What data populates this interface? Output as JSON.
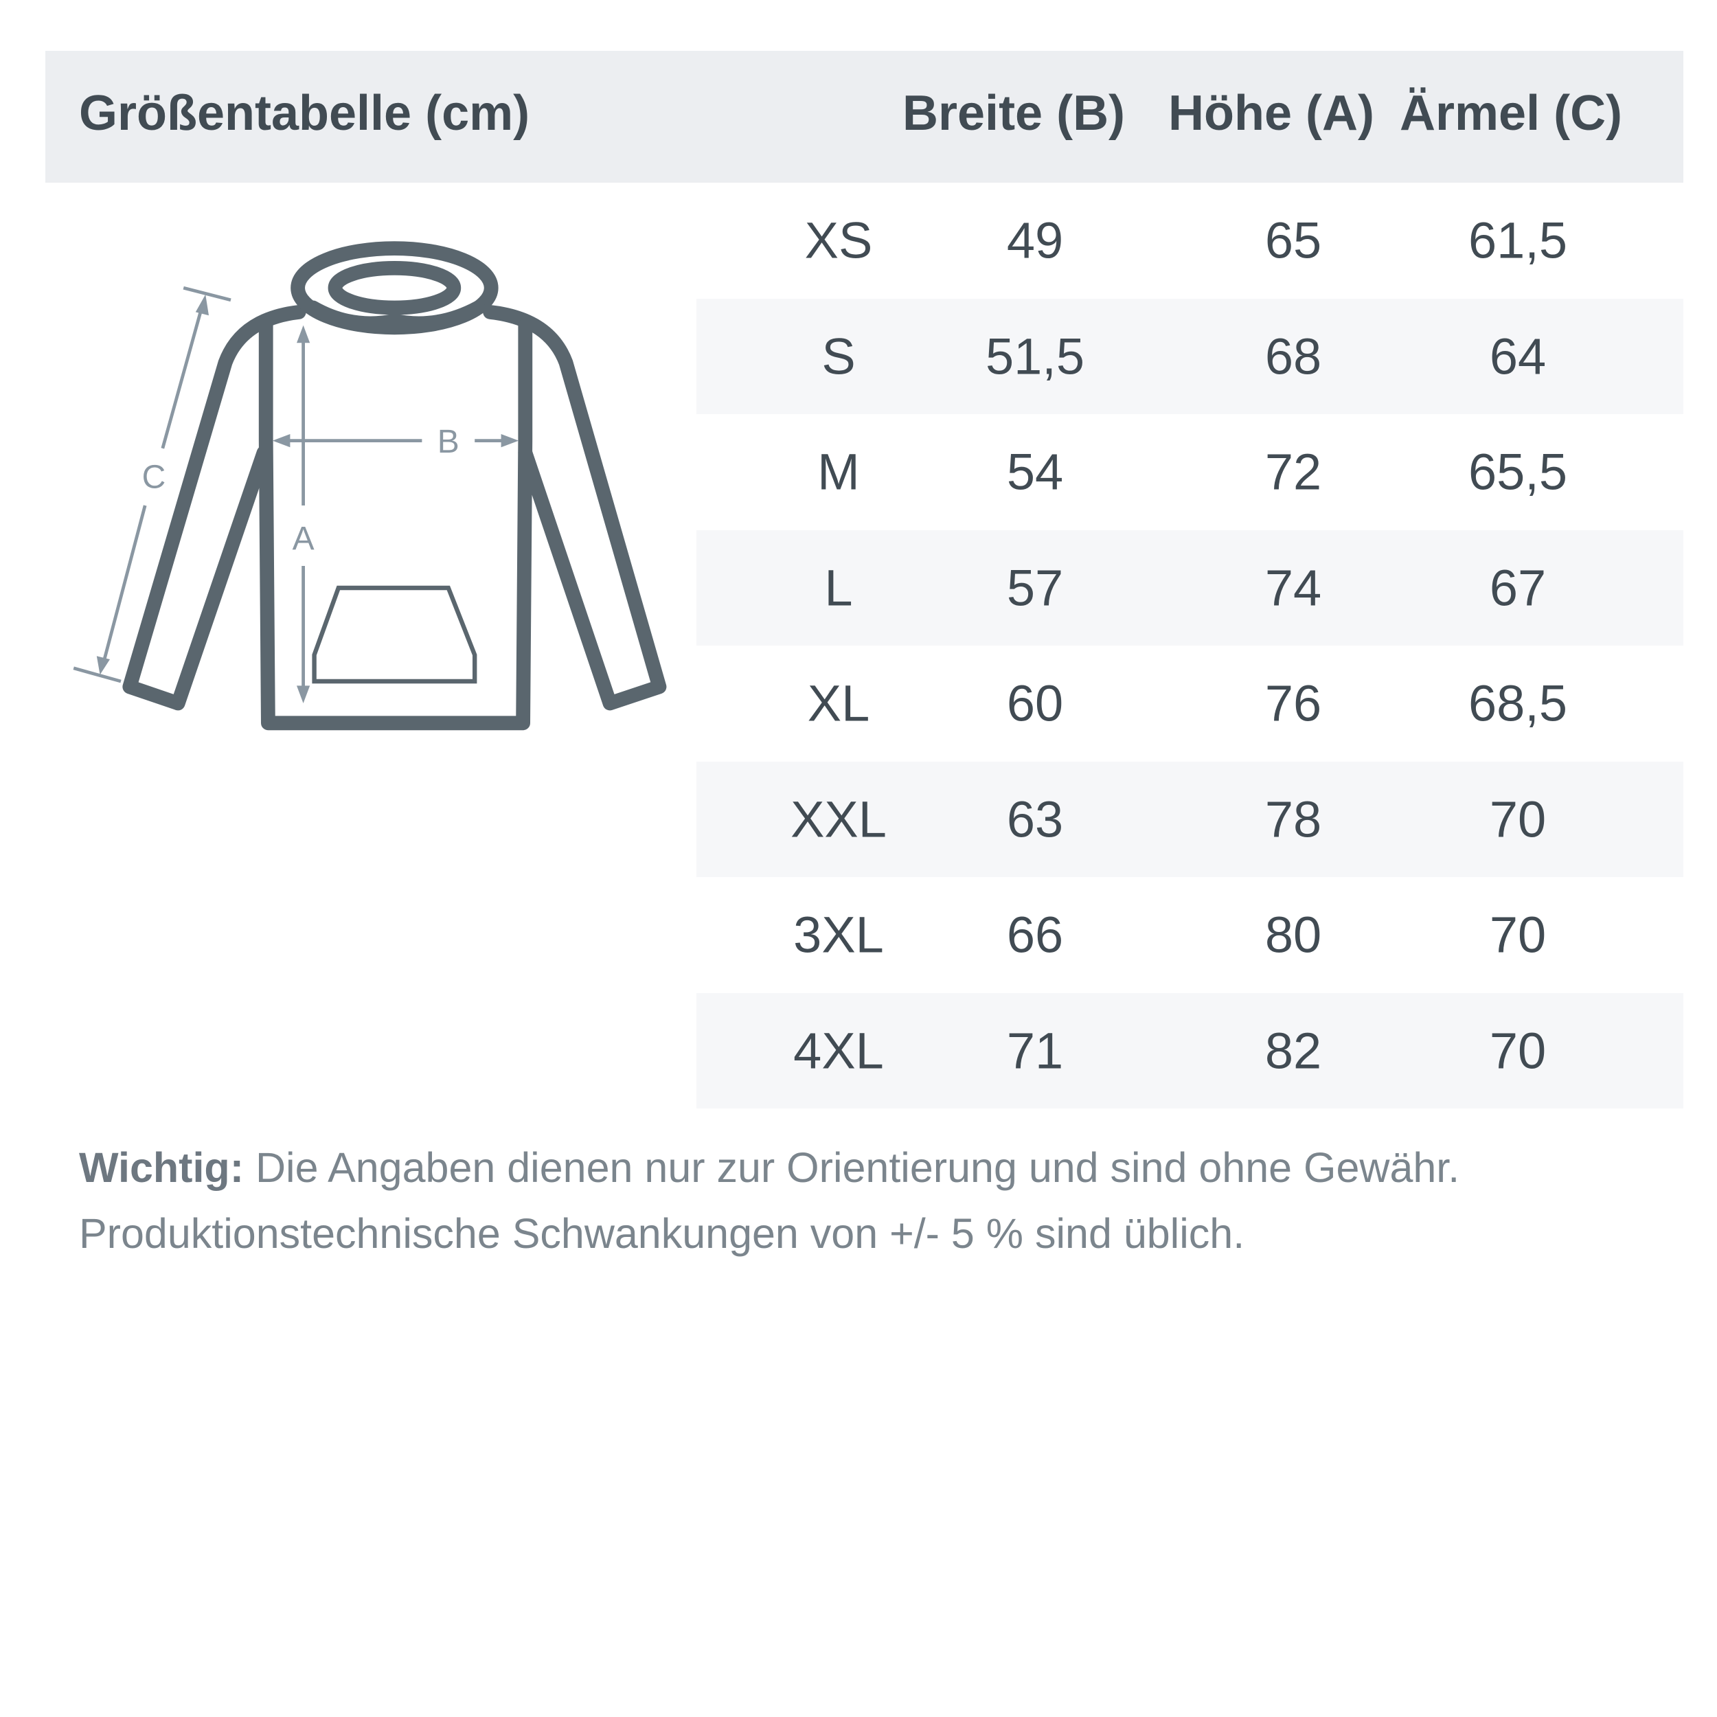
{
  "header": {
    "title": "Größentabelle (cm)",
    "columns": [
      "Breite (B)",
      "Höhe (A)",
      "Ärmel (C)"
    ]
  },
  "rows": [
    {
      "size": "XS",
      "breite": "49",
      "hoehe": "65",
      "aermel": "61,5"
    },
    {
      "size": "S",
      "breite": "51,5",
      "hoehe": "68",
      "aermel": "64"
    },
    {
      "size": "M",
      "breite": "54",
      "hoehe": "72",
      "aermel": "65,5"
    },
    {
      "size": "L",
      "breite": "57",
      "hoehe": "74",
      "aermel": "67"
    },
    {
      "size": "XL",
      "breite": "60",
      "hoehe": "76",
      "aermel": "68,5"
    },
    {
      "size": "XXL",
      "breite": "63",
      "hoehe": "78",
      "aermel": "70"
    },
    {
      "size": "3XL",
      "breite": "66",
      "hoehe": "80",
      "aermel": "70"
    },
    {
      "size": "4XL",
      "breite": "71",
      "hoehe": "82",
      "aermel": "70"
    }
  ],
  "diagram": {
    "label_a": "A",
    "label_b": "B",
    "label_c": "C"
  },
  "note": {
    "bold": "Wichtig:",
    "line1": " Die Angaben dienen nur zur Orientierung und sind ohne Gewähr.",
    "line2": "Produktionstechnische Schwankungen von +/- 5 % sind üblich."
  },
  "colors": {
    "outline": "#5a666e",
    "measure": "#8a97a2",
    "header_bg": "#eceef1",
    "stripe": "#f6f7f9"
  }
}
